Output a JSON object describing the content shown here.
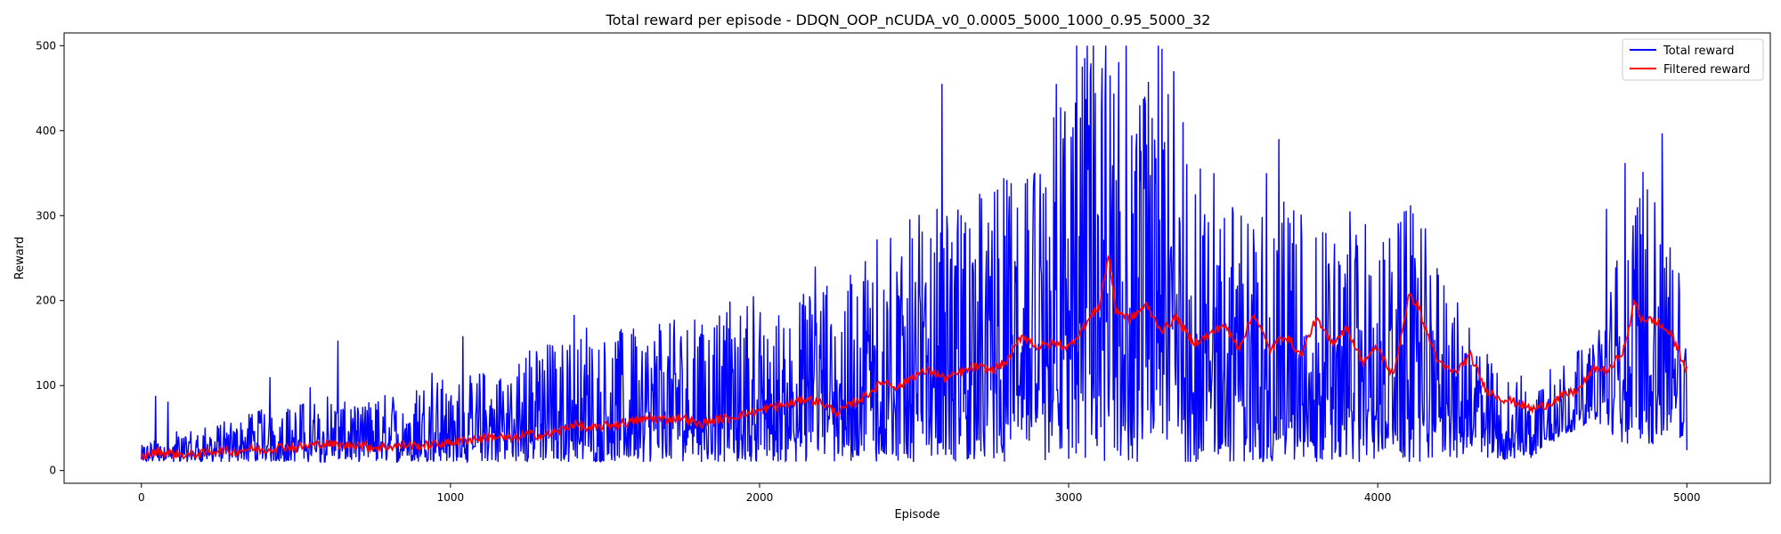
{
  "chart_data": {
    "type": "line",
    "title": "Total reward per episode - DDQN_OOP_nCUDA_v0_0.0005_5000_1000_0.95_5000_32",
    "xlabel": "Episode",
    "ylabel": "Reward",
    "xlim": [
      -250,
      5270
    ],
    "ylim": [
      -15,
      515
    ],
    "xticks": [
      0,
      1000,
      2000,
      3000,
      4000,
      5000
    ],
    "yticks": [
      0,
      100,
      200,
      300,
      400,
      500
    ],
    "grid": false,
    "legend_position": "top-right",
    "colors": {
      "total": "#0000ff",
      "filtered": "#ff0000"
    },
    "series": [
      {
        "name": "Total reward",
        "color": "#0000ff",
        "x": [
          0,
          100,
          200,
          300,
          400,
          500,
          600,
          700,
          800,
          900,
          1000,
          1100,
          1200,
          1300,
          1400,
          1500,
          1600,
          1700,
          1800,
          1900,
          2000,
          2100,
          2200,
          2300,
          2400,
          2500,
          2600,
          2700,
          2800,
          2900,
          3000,
          3050,
          3100,
          3150,
          3200,
          3250,
          3300,
          3350,
          3400,
          3500,
          3600,
          3700,
          3800,
          3900,
          4000,
          4100,
          4150,
          4200,
          4300,
          4400,
          4500,
          4600,
          4700,
          4800,
          4850,
          4900,
          4950,
          5000
        ],
        "min": [
          10,
          10,
          10,
          10,
          10,
          10,
          10,
          10,
          10,
          10,
          10,
          10,
          10,
          10,
          10,
          10,
          10,
          10,
          10,
          10,
          10,
          10,
          10,
          10,
          10,
          10,
          10,
          10,
          10,
          10,
          10,
          10,
          10,
          10,
          10,
          10,
          10,
          10,
          10,
          10,
          10,
          10,
          10,
          10,
          10,
          10,
          10,
          12,
          15,
          12,
          15,
          40,
          60,
          30,
          25,
          30,
          40,
          15
        ],
        "max": [
          30,
          45,
          55,
          60,
          75,
          80,
          90,
          75,
          95,
          110,
          110,
          120,
          140,
          155,
          160,
          165,
          170,
          175,
          190,
          200,
          205,
          195,
          240,
          250,
          275,
          300,
          320,
          340,
          350,
          360,
          500,
          500,
          500,
          500,
          440,
          470,
          500,
          410,
          380,
          330,
          320,
          340,
          300,
          280,
          280,
          310,
          290,
          240,
          170,
          115,
          115,
          135,
          150,
          300,
          360,
          330,
          300,
          160
        ],
        "spikes": [
          [
            45,
            88
          ],
          [
            85,
            81
          ],
          [
            415,
            110
          ],
          [
            520,
            78
          ],
          [
            545,
            98
          ],
          [
            635,
            153
          ],
          [
            940,
            115
          ],
          [
            1040,
            158
          ],
          [
            1330,
            147
          ],
          [
            1400,
            183
          ],
          [
            1440,
            168
          ],
          [
            1680,
            165
          ],
          [
            1980,
            205
          ],
          [
            2130,
            198
          ],
          [
            2180,
            240
          ],
          [
            2380,
            272
          ],
          [
            2460,
            252
          ],
          [
            2590,
            455
          ],
          [
            2680,
            285
          ],
          [
            2760,
            328
          ],
          [
            2800,
            342
          ],
          [
            2860,
            338
          ],
          [
            2960,
            455
          ],
          [
            3025,
            500
          ],
          [
            3060,
            500
          ],
          [
            3080,
            500
          ],
          [
            3120,
            500
          ],
          [
            3185,
            500
          ],
          [
            3230,
            430
          ],
          [
            3290,
            500
          ],
          [
            3340,
            470
          ],
          [
            3370,
            410
          ],
          [
            3410,
            325
          ],
          [
            3470,
            350
          ],
          [
            3530,
            310
          ],
          [
            3640,
            350
          ],
          [
            3680,
            390
          ],
          [
            3910,
            305
          ],
          [
            3960,
            290
          ],
          [
            4105,
            312
          ],
          [
            4140,
            285
          ],
          [
            4800,
            362
          ],
          [
            4740,
            308
          ],
          [
            4840,
            310
          ],
          [
            4920,
            397
          ]
        ]
      },
      {
        "name": "Filtered reward",
        "color": "#ff0000",
        "x": [
          0,
          50,
          100,
          150,
          200,
          250,
          300,
          350,
          400,
          450,
          500,
          550,
          600,
          650,
          700,
          750,
          800,
          850,
          900,
          950,
          1000,
          1050,
          1100,
          1150,
          1200,
          1250,
          1300,
          1350,
          1400,
          1450,
          1500,
          1550,
          1600,
          1650,
          1700,
          1750,
          1800,
          1850,
          1900,
          1950,
          2000,
          2050,
          2100,
          2150,
          2200,
          2250,
          2300,
          2350,
          2400,
          2450,
          2500,
          2550,
          2600,
          2650,
          2700,
          2750,
          2800,
          2850,
          2900,
          2950,
          3000,
          3050,
          3100,
          3130,
          3150,
          3200,
          3250,
          3300,
          3350,
          3400,
          3450,
          3500,
          3550,
          3600,
          3650,
          3700,
          3750,
          3800,
          3850,
          3900,
          3950,
          4000,
          4050,
          4100,
          4130,
          4150,
          4200,
          4250,
          4300,
          4350,
          4400,
          4450,
          4500,
          4550,
          4600,
          4650,
          4700,
          4750,
          4800,
          4830,
          4850,
          4900,
          4950,
          5000
        ],
        "values": [
          16,
          22,
          20,
          18,
          20,
          24,
          22,
          26,
          24,
          28,
          27,
          30,
          32,
          29,
          31,
          27,
          28,
          30,
          29,
          31,
          33,
          36,
          38,
          40,
          37,
          43,
          41,
          46,
          55,
          48,
          53,
          55,
          58,
          62,
          60,
          63,
          54,
          59,
          62,
          66,
          70,
          76,
          78,
          85,
          80,
          68,
          78,
          90,
          105,
          98,
          112,
          118,
          108,
          115,
          122,
          118,
          128,
          160,
          145,
          150,
          145,
          170,
          195,
          255,
          190,
          178,
          195,
          165,
          180,
          150,
          158,
          172,
          145,
          185,
          142,
          160,
          135,
          178,
          150,
          168,
          128,
          145,
          110,
          205,
          196,
          170,
          125,
          115,
          135,
          95,
          85,
          80,
          72,
          78,
          88,
          95,
          120,
          118,
          145,
          200,
          180,
          175,
          160,
          118
        ]
      }
    ]
  }
}
